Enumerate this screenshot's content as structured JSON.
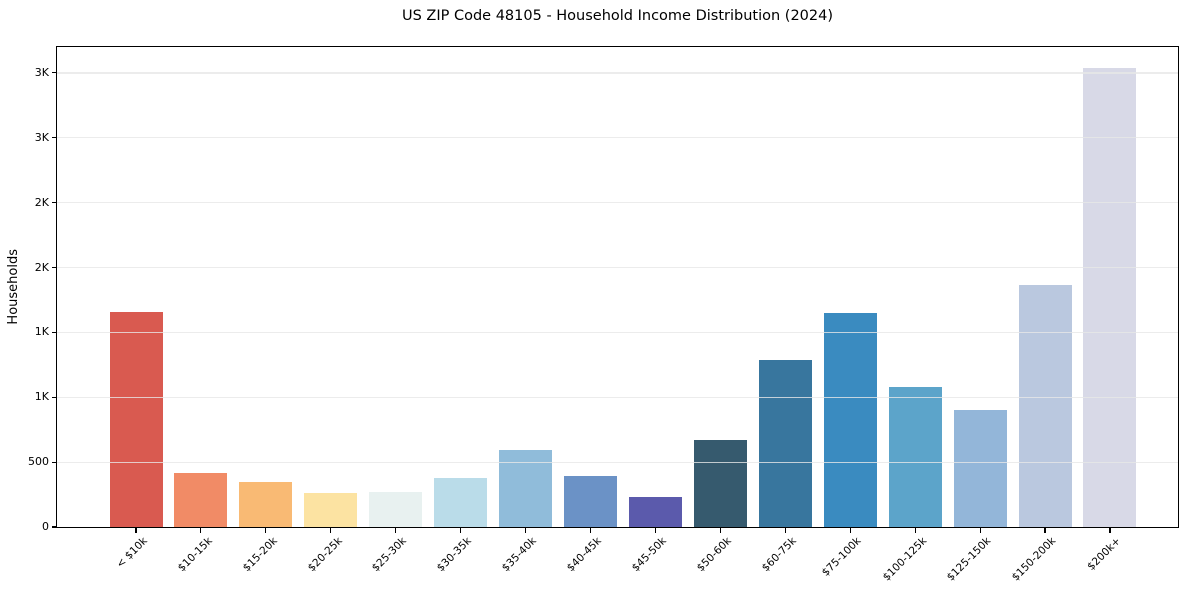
{
  "page": {
    "background": "#ffffff"
  },
  "chart_data": {
    "type": "bar",
    "title": "US ZIP Code 48105 - Household Income Distribution (2024)",
    "xlabel": "",
    "ylabel": "Households",
    "categories": [
      "< $10k",
      "$10-15k",
      "$15-20k",
      "$20-25k",
      "$25-30k",
      "$30-35k",
      "$35-40k",
      "$40-45k",
      "$45-50k",
      "$50-60k",
      "$60-75k",
      "$75-100k",
      "$100-125k",
      "$125-150k",
      "$150-200k",
      "$200k+"
    ],
    "values": [
      1655,
      420,
      345,
      262,
      272,
      375,
      595,
      395,
      230,
      670,
      1285,
      1650,
      1080,
      905,
      1865,
      3540
    ],
    "bar_colors": [
      "#d95a50",
      "#f18b66",
      "#f9ba74",
      "#fce3a2",
      "#e8f1f0",
      "#badce9",
      "#90bcda",
      "#6b92c6",
      "#5b5aac",
      "#365a6e",
      "#38769e",
      "#3a8bc0",
      "#5ca4ca",
      "#93b6d9",
      "#bac8df",
      "#d8d9e7"
    ],
    "ylim": [
      0,
      3700
    ],
    "yticks": [
      {
        "value": 0,
        "label": "0"
      },
      {
        "value": 500,
        "label": "500"
      },
      {
        "value": 1000,
        "label": "1K"
      },
      {
        "value": 1500,
        "label": "1K"
      },
      {
        "value": 2000,
        "label": "2K"
      },
      {
        "value": 2500,
        "label": "2K"
      },
      {
        "value": 3000,
        "label": "3K"
      },
      {
        "value": 3500,
        "label": "3K"
      }
    ],
    "grid": {
      "axis": "y",
      "on": true,
      "color": "#e7e7e7",
      "drawn_over_bars": true
    },
    "legend_position": "none",
    "x_tick_rotation_deg": 45,
    "axis_color": "#000000",
    "text_color": "#000000",
    "plot_background": "#ffffff"
  }
}
